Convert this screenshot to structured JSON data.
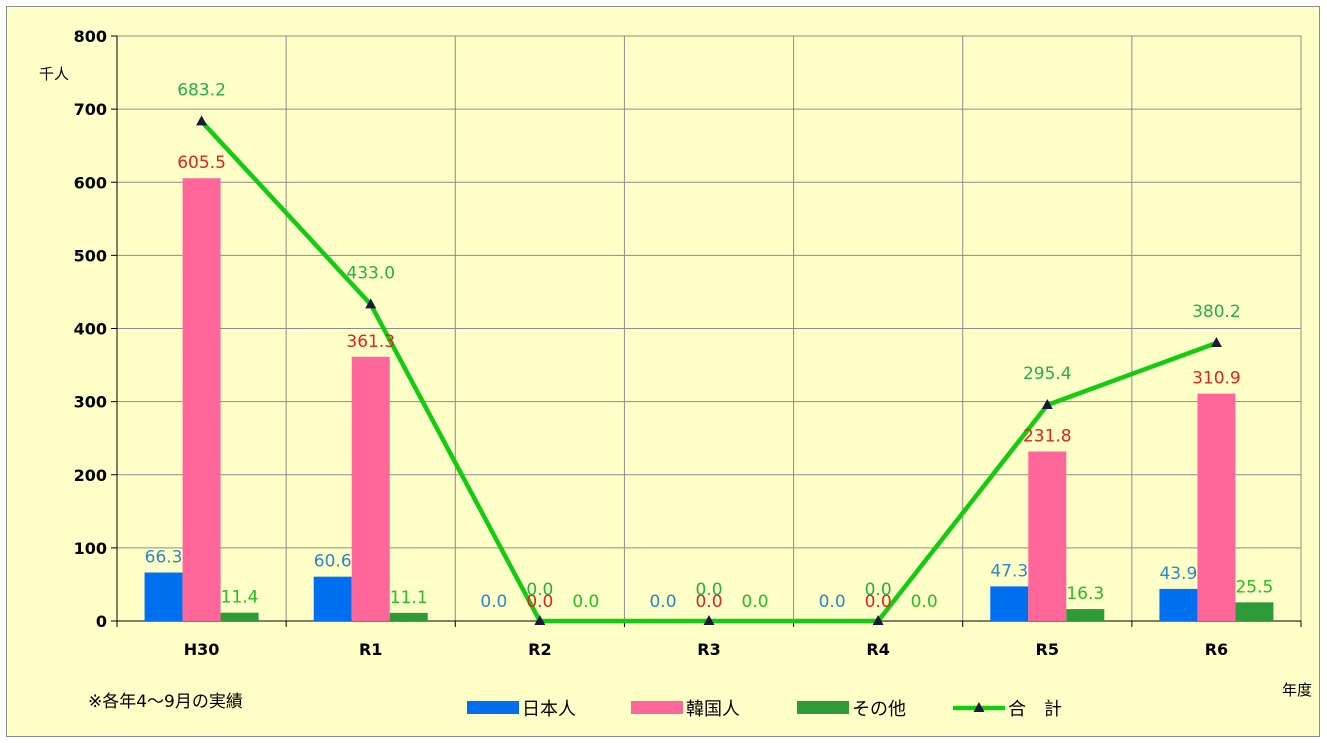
{
  "chart_data": {
    "type": "bar",
    "categories": [
      "H30",
      "R1",
      "R2",
      "R3",
      "R4",
      "R5",
      "R6"
    ],
    "series": [
      {
        "name": "日本人",
        "type": "bar",
        "color": "#0070f0",
        "values": [
          66.3,
          60.6,
          0.0,
          0.0,
          0.0,
          47.3,
          43.9
        ],
        "labels": [
          "66.3",
          "60.6",
          "0.0",
          "0.0",
          "0.0",
          "47.3",
          "43.9"
        ],
        "label_color": "#2e86c8"
      },
      {
        "name": "韓国人",
        "type": "bar",
        "color": "#ff6699",
        "values": [
          605.5,
          361.3,
          0.0,
          0.0,
          0.0,
          231.8,
          310.9
        ],
        "labels": [
          "605.5",
          "361.3",
          "0.0",
          "0.0",
          "0.0",
          "231.8",
          "310.9"
        ],
        "label_color": "#e8201c"
      },
      {
        "name": "その他",
        "type": "bar",
        "color": "#2e9a38",
        "values": [
          11.4,
          11.1,
          0.0,
          0.0,
          0.0,
          16.3,
          25.5
        ],
        "labels": [
          "11.4",
          "11.1",
          "0.0",
          "0.0",
          "0.0",
          "16.3",
          "25.5"
        ],
        "label_color": "#22c022"
      },
      {
        "name": "合　計",
        "type": "line",
        "color": "#11cc11",
        "marker_color": "#1a1a3a",
        "values": [
          683.2,
          433.0,
          0.0,
          0.0,
          0.0,
          295.4,
          380.2
        ],
        "labels": [
          "683.2",
          "433.0",
          "0.0",
          "0.0",
          "0.0",
          "295.4",
          "380.2"
        ],
        "label_color": "#22b04a"
      }
    ],
    "ylim": [
      0,
      800
    ],
    "yticks": [
      "0",
      "100",
      "200",
      "300",
      "400",
      "500",
      "600",
      "700",
      "800"
    ],
    "ylabel": "千人",
    "xlabel": "年度",
    "note": "※各年4～9月の実績",
    "grid": true,
    "legend_position": "bottom",
    "background": "#ffffc8"
  }
}
